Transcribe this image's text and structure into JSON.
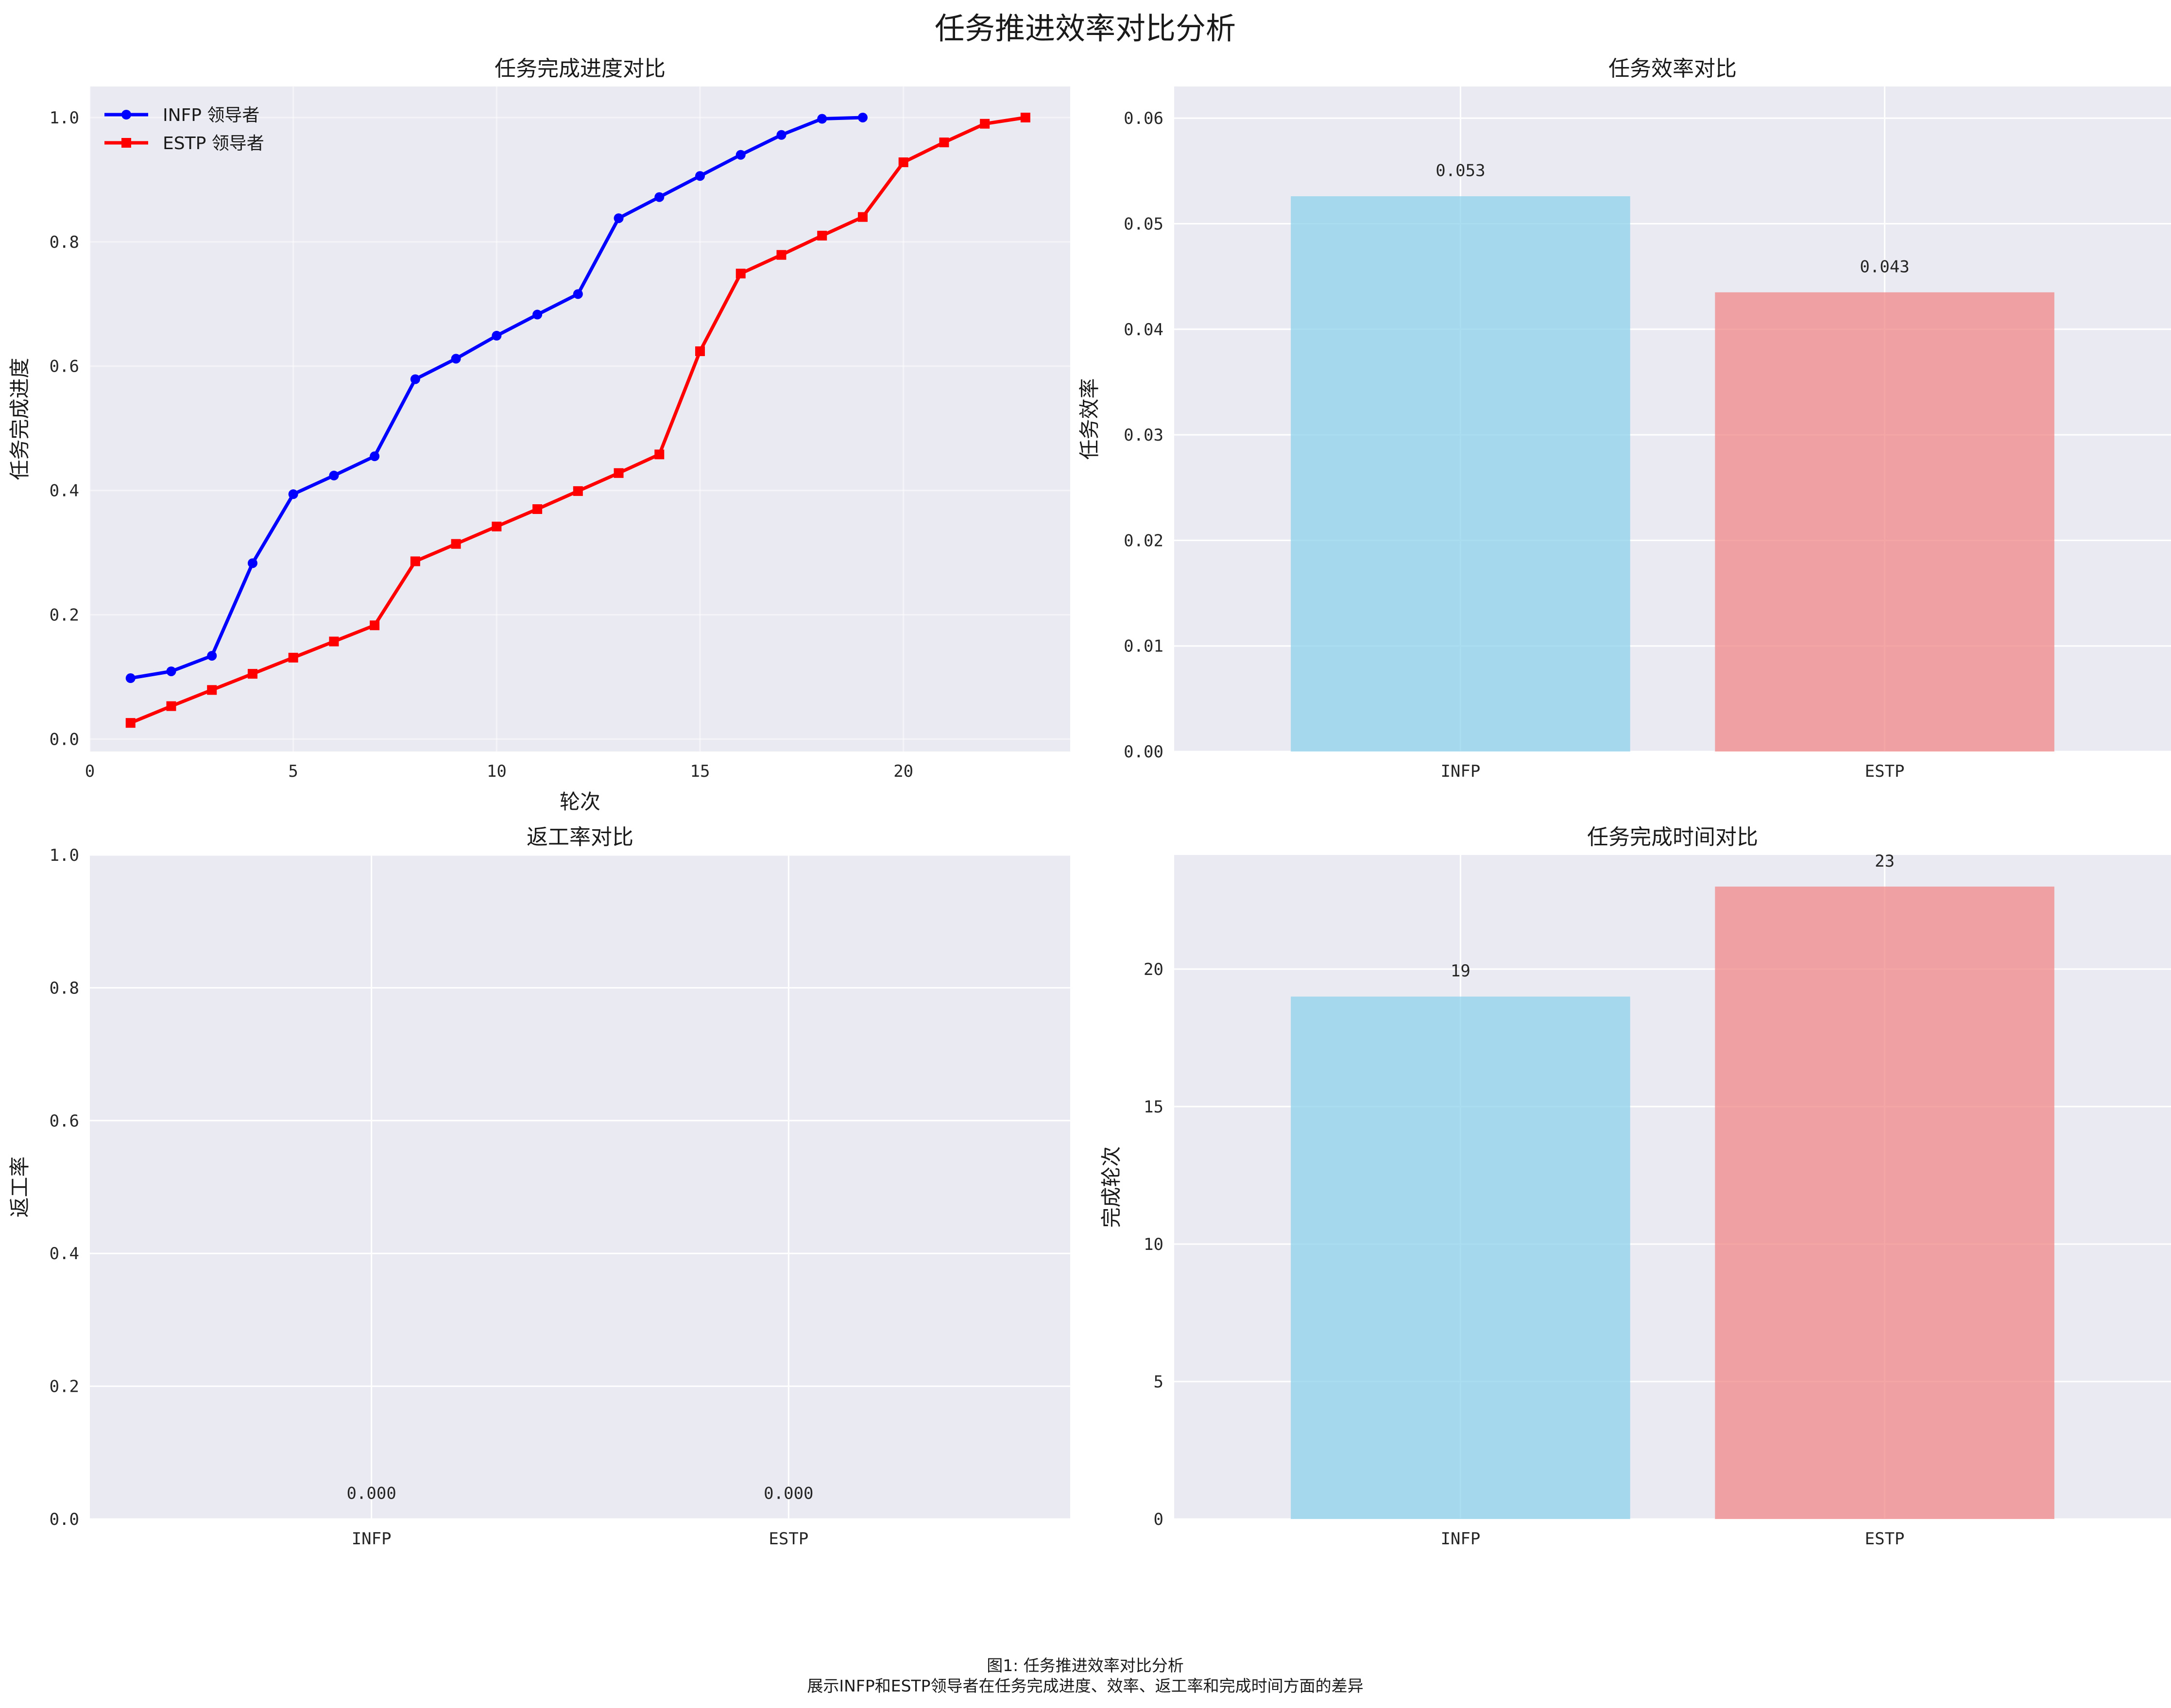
{
  "suptitle": "任务推进效率对比分析",
  "caption": {
    "line1": "图1: 任务推进效率对比分析",
    "line2": "展示INFP和ESTP领导者在任务完成进度、效率、返工率和完成时间方面的差异"
  },
  "colors": {
    "infp_line": "#0000ff",
    "estp_line": "#ff0000",
    "infp_bar": "#87ceeb",
    "estp_bar": "#f08080",
    "axes_bg": "#eaeaf2",
    "grid": "#ffffff"
  },
  "chart_data": [
    {
      "type": "line",
      "title": "任务完成进度对比",
      "xlabel": "轮次",
      "ylabel": "任务完成进度",
      "xlim": [
        0,
        24.1
      ],
      "ylim": [
        -0.02,
        1.05
      ],
      "xticks": [
        0,
        5,
        10,
        15,
        20
      ],
      "yticks": [
        0.0,
        0.2,
        0.4,
        0.6,
        0.8,
        1.0
      ],
      "ytick_labels": [
        "0.0",
        "0.2",
        "0.4",
        "0.6",
        "0.8",
        "1.0"
      ],
      "grid": true,
      "legend_position": "top-left",
      "series": [
        {
          "name": "INFP 领导者",
          "marker": "circle",
          "x": [
            1,
            2,
            3,
            4,
            5,
            6,
            7,
            8,
            9,
            10,
            11,
            12,
            13,
            14,
            15,
            16,
            17,
            18,
            19
          ],
          "y": [
            0.098,
            0.109,
            0.134,
            0.283,
            0.394,
            0.424,
            0.455,
            0.579,
            0.612,
            0.649,
            0.683,
            0.716,
            0.838,
            0.872,
            0.906,
            0.94,
            0.972,
            0.998,
            1.0
          ]
        },
        {
          "name": "ESTP 领导者",
          "marker": "square",
          "x": [
            1,
            2,
            3,
            4,
            5,
            6,
            7,
            8,
            9,
            10,
            11,
            12,
            13,
            14,
            15,
            16,
            17,
            18,
            19,
            20,
            21,
            22,
            23
          ],
          "y": [
            0.026,
            0.053,
            0.079,
            0.105,
            0.131,
            0.157,
            0.183,
            0.286,
            0.314,
            0.342,
            0.37,
            0.399,
            0.428,
            0.458,
            0.624,
            0.749,
            0.779,
            0.81,
            0.84,
            0.928,
            0.96,
            0.99,
            1.0
          ]
        }
      ]
    },
    {
      "type": "bar",
      "title": "任务效率对比",
      "xlabel": "",
      "ylabel": "任务效率",
      "categories": [
        "INFP",
        "ESTP"
      ],
      "values": [
        0.0526,
        0.0435
      ],
      "data_labels": [
        "0.053",
        "0.043"
      ],
      "ylim": [
        0,
        0.063
      ],
      "yticks": [
        0.0,
        0.01,
        0.02,
        0.03,
        0.04,
        0.05,
        0.06
      ],
      "ytick_labels": [
        "0.00",
        "0.01",
        "0.02",
        "0.03",
        "0.04",
        "0.05",
        "0.06"
      ],
      "grid": true
    },
    {
      "type": "bar",
      "title": "返工率对比",
      "xlabel": "",
      "ylabel": "返工率",
      "categories": [
        "INFP",
        "ESTP"
      ],
      "values": [
        0.0,
        0.0
      ],
      "data_labels": [
        "0.000",
        "0.000"
      ],
      "ylim": [
        0,
        1.0
      ],
      "yticks": [
        0.0,
        0.2,
        0.4,
        0.6,
        0.8,
        1.0
      ],
      "ytick_labels": [
        "0.0",
        "0.2",
        "0.4",
        "0.6",
        "0.8",
        "1.0"
      ],
      "grid": true
    },
    {
      "type": "bar",
      "title": "任务完成时间对比",
      "xlabel": "",
      "ylabel": "完成轮次",
      "categories": [
        "INFP",
        "ESTP"
      ],
      "values": [
        19,
        23
      ],
      "data_labels": [
        "19",
        "23"
      ],
      "ylim": [
        0,
        24.15
      ],
      "yticks": [
        0,
        5,
        10,
        15,
        20
      ],
      "ytick_labels": [
        "0",
        "5",
        "10",
        "15",
        "20"
      ],
      "grid": true
    }
  ]
}
